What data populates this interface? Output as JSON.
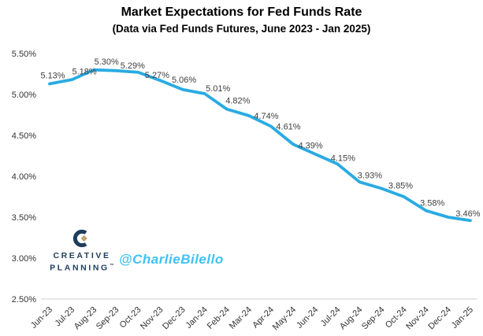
{
  "header": {
    "title": "Market Expectations for Fed Funds Rate",
    "subtitle": "(Data via Fed Funds Futures, June 2023 - Jan 2025)"
  },
  "branding": {
    "creative_planning_line1": "CREATIVE",
    "creative_planning_line2": "PLANNING",
    "trademark": "™",
    "handle": "@CharlieBilello"
  },
  "colors": {
    "line": "#29abe2",
    "data_label": "#3f3f3f",
    "axis_line": "#d9d9d9",
    "tick_text": "#333333",
    "logo_navy": "#1d3d5c",
    "logo_tan": "#c1a571",
    "handle_cyan": "#3fc2f3"
  },
  "chart_data": {
    "type": "line",
    "title": "Market Expectations for Fed Funds Rate",
    "subtitle": "(Data via Fed Funds Futures, June 2023 - Jan 2025)",
    "categories": [
      "Jun-23",
      "Jul-23",
      "Aug-23",
      "Sep-23",
      "Oct-23",
      "Nov-23",
      "Dec-23",
      "Jan-24",
      "Feb-24",
      "Mar-24",
      "Apr-24",
      "May-24",
      "Jun-24",
      "Jul-24",
      "Aug-24",
      "Sep-24",
      "Oct-24",
      "Nov-24",
      "Dec-24",
      "Jan-25"
    ],
    "values": [
      5.13,
      5.18,
      5.3,
      5.29,
      5.27,
      5.17,
      5.06,
      5.01,
      4.82,
      4.74,
      4.61,
      4.39,
      4.27,
      4.15,
      3.93,
      3.85,
      3.75,
      3.58,
      3.5,
      3.46
    ],
    "point_labels": [
      "5.13%",
      "5.18%",
      "5.30%",
      "5.29%",
      "5.27%",
      null,
      "5.06%",
      "5.01%",
      "4.82%",
      "4.74%",
      "4.61%",
      "4.39%",
      null,
      "4.15%",
      "3.93%",
      "3.85%",
      null,
      "3.58%",
      null,
      "3.46%"
    ],
    "xlabel": "",
    "ylabel": "",
    "ylim": [
      2.5,
      5.5
    ],
    "ytick_values": [
      5.5,
      5.0,
      4.5,
      4.0,
      3.5,
      3.0,
      2.5
    ],
    "ytick_labels": [
      "5.50%",
      "5.00%",
      "4.50%",
      "4.00%",
      "3.50%",
      "3.00%",
      "2.50%"
    ],
    "grid": false,
    "legend": "none"
  }
}
